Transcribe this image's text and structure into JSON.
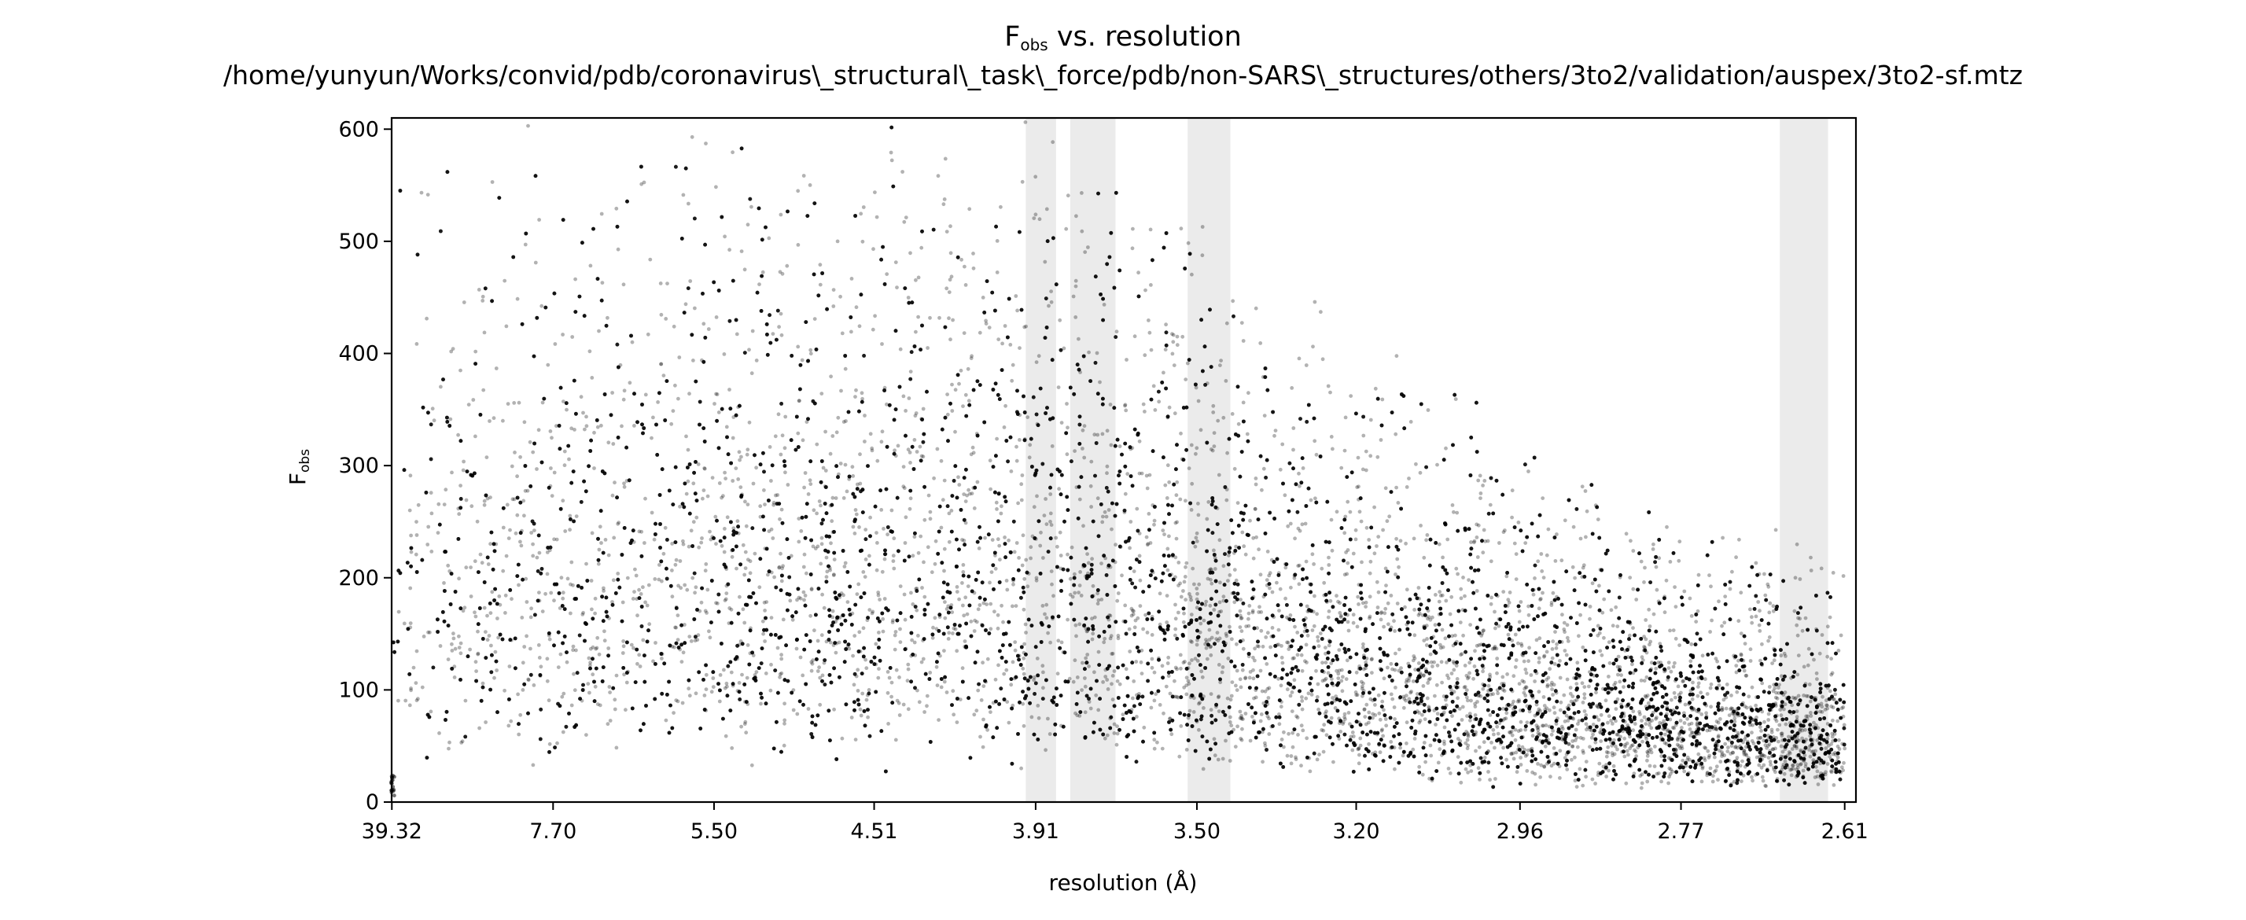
{
  "colors": {
    "point": "#000000",
    "exclusion_band": "#ebebeb",
    "axes": "#000000",
    "background": "#ffffff"
  },
  "chart_data": {
    "type": "scatter",
    "title": {
      "main": "F",
      "main_sub": "obs",
      "main_suffix": " vs. resolution",
      "path": "/home/yunyun/Works/convid/pdb/coronavirus\\_structural\\_task\\_force/pdb/non-SARS\\_structures/others/3to2/validation/auspex/3to2-sf.mtz"
    },
    "xlabel": "resolution (Å)",
    "ylabel": {
      "main": "F",
      "sub": "obs"
    },
    "x_axis_scale": "1/d^2 (ticks labelled as resolution in Å)",
    "x_ticks": [
      "39.32",
      "7.70",
      "5.50",
      "4.51",
      "3.91",
      "3.50",
      "3.20",
      "2.96",
      "2.77",
      "2.61"
    ],
    "x_range_resolution": [
      40.0,
      2.6
    ],
    "y_ticks": [
      0,
      100,
      200,
      300,
      400,
      500,
      600
    ],
    "ylim": [
      0,
      610
    ],
    "grid": false,
    "legend": "none",
    "ice_ring_bands_resolution": [
      [
        3.94,
        3.85
      ],
      [
        3.81,
        3.69
      ],
      [
        3.52,
        3.43
      ],
      [
        2.67,
        2.625
      ]
    ],
    "point_alpha": 0.3,
    "point_count_approx": 22000,
    "distribution_envelope": [
      {
        "resolution": 39.32,
        "fobs_median": 200,
        "fobs_upper": 600
      },
      {
        "resolution": 7.7,
        "fobs_median": 230,
        "fobs_upper": 610
      },
      {
        "resolution": 5.5,
        "fobs_median": 240,
        "fobs_upper": 610
      },
      {
        "resolution": 4.51,
        "fobs_median": 235,
        "fobs_upper": 610
      },
      {
        "resolution": 3.91,
        "fobs_median": 220,
        "fobs_upper": 600
      },
      {
        "resolution": 3.5,
        "fobs_median": 180,
        "fobs_upper": 520
      },
      {
        "resolution": 3.2,
        "fobs_median": 140,
        "fobs_upper": 420
      },
      {
        "resolution": 2.96,
        "fobs_median": 105,
        "fobs_upper": 320
      },
      {
        "resolution": 2.77,
        "fobs_median": 80,
        "fobs_upper": 260
      },
      {
        "resolution": 2.61,
        "fobs_median": 65,
        "fobs_upper": 230
      }
    ]
  }
}
